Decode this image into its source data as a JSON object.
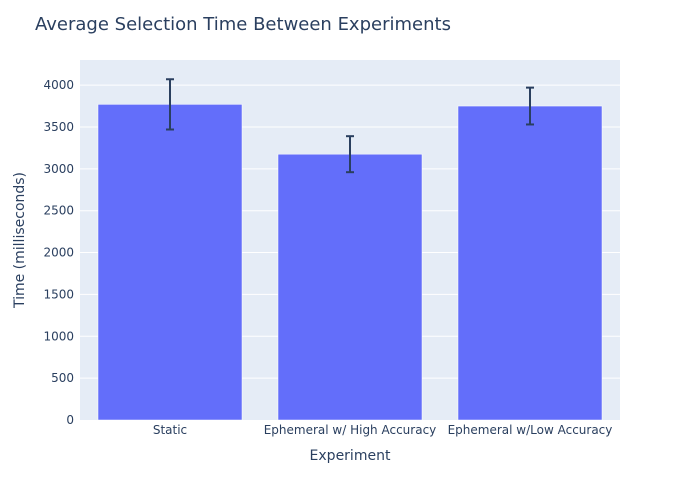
{
  "chart_data": {
    "type": "bar",
    "title": "Average Selection Time Between Experiments",
    "xlabel": "Experiment",
    "ylabel": "Time (milliseconds)",
    "categories": [
      "Static",
      "Ephemeral w/ High Accuracy",
      "Ephemeral w/Low Accuracy"
    ],
    "values": [
      3770,
      3175,
      3750
    ],
    "error_bars": [
      {
        "low": 3470,
        "high": 4070
      },
      {
        "low": 2960,
        "high": 3390
      },
      {
        "low": 3530,
        "high": 3970
      }
    ],
    "ylim": [
      0,
      4300
    ],
    "yticks": [
      0,
      500,
      1000,
      1500,
      2000,
      2500,
      3000,
      3500,
      4000
    ],
    "grid": true,
    "colors": {
      "bar": "#636efa",
      "plot_bg": "#e5ecf6",
      "grid": "#ffffff",
      "error_bar": "#2a3f5f",
      "text": "#2a3f5f"
    }
  }
}
